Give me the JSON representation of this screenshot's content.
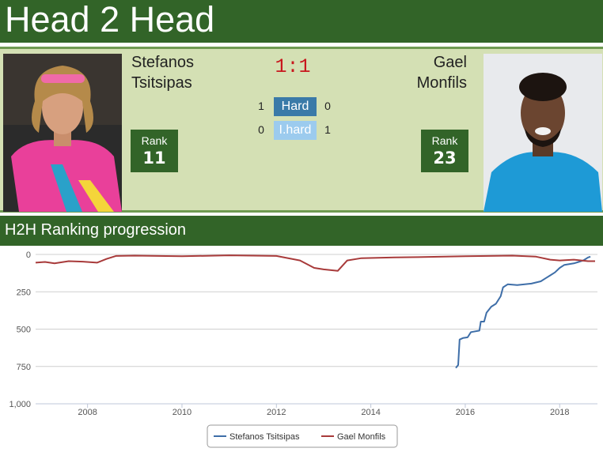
{
  "header": {
    "title": "Head 2 Head"
  },
  "player_left": {
    "first_name": "Stefanos",
    "last_name": "Tsitsipas",
    "rank_label": "Rank",
    "rank": "11"
  },
  "player_right": {
    "first_name": "Gael",
    "last_name": "Monfils",
    "rank_label": "Rank",
    "rank": "23"
  },
  "score": "1:1",
  "surfaces": [
    {
      "label": "Hard",
      "left": "1",
      "right": "0",
      "color": "#3a7aa8"
    },
    {
      "label": "I.hard",
      "left": "0",
      "right": "1",
      "color": "#9ccbee"
    }
  ],
  "section": {
    "title": "H2H Ranking progression"
  },
  "chart_data": {
    "type": "line",
    "y_inverted": true,
    "ylim": [
      0,
      1000
    ],
    "yticks": [
      "0",
      "250",
      "500",
      "750",
      "1,000"
    ],
    "xlim": [
      2006.9,
      2018.8
    ],
    "xticks": [
      "2008",
      "2010",
      "2012",
      "2014",
      "2016",
      "2018"
    ],
    "grid": true,
    "legend": "bottom-center",
    "series": [
      {
        "name": "Stefanos Tsitsipas",
        "color": "#3e6ea8",
        "points": [
          [
            2015.8,
            760
          ],
          [
            2015.85,
            740
          ],
          [
            2015.88,
            570
          ],
          [
            2015.95,
            560
          ],
          [
            2016.05,
            555
          ],
          [
            2016.12,
            520
          ],
          [
            2016.3,
            510
          ],
          [
            2016.33,
            450
          ],
          [
            2016.4,
            450
          ],
          [
            2016.45,
            390
          ],
          [
            2016.55,
            350
          ],
          [
            2016.65,
            330
          ],
          [
            2016.75,
            280
          ],
          [
            2016.8,
            220
          ],
          [
            2016.9,
            200
          ],
          [
            2017.1,
            205
          ],
          [
            2017.4,
            195
          ],
          [
            2017.6,
            180
          ],
          [
            2017.7,
            160
          ],
          [
            2017.8,
            140
          ],
          [
            2017.9,
            120
          ],
          [
            2018.0,
            90
          ],
          [
            2018.1,
            70
          ],
          [
            2018.3,
            60
          ],
          [
            2018.4,
            50
          ],
          [
            2018.5,
            40
          ],
          [
            2018.6,
            20
          ],
          [
            2018.65,
            15
          ]
        ]
      },
      {
        "name": "Gael Monfils",
        "color": "#a83a3a",
        "points": [
          [
            2006.9,
            55
          ],
          [
            2007.1,
            50
          ],
          [
            2007.3,
            60
          ],
          [
            2007.6,
            45
          ],
          [
            2007.9,
            48
          ],
          [
            2008.2,
            55
          ],
          [
            2008.4,
            30
          ],
          [
            2008.6,
            10
          ],
          [
            2009,
            8
          ],
          [
            2010,
            12
          ],
          [
            2011,
            6
          ],
          [
            2012,
            10
          ],
          [
            2012.5,
            40
          ],
          [
            2012.8,
            90
          ],
          [
            2013.0,
            100
          ],
          [
            2013.3,
            110
          ],
          [
            2013.5,
            40
          ],
          [
            2013.8,
            25
          ],
          [
            2014.5,
            20
          ],
          [
            2015,
            18
          ],
          [
            2016,
            12
          ],
          [
            2017,
            8
          ],
          [
            2017.5,
            15
          ],
          [
            2017.8,
            35
          ],
          [
            2018.0,
            40
          ],
          [
            2018.3,
            35
          ],
          [
            2018.6,
            45
          ],
          [
            2018.75,
            45
          ]
        ]
      }
    ]
  }
}
